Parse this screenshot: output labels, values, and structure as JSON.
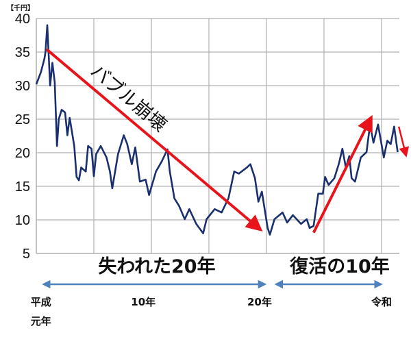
{
  "chart_data": {
    "type": "line",
    "unit_label": "【千円】",
    "ylim": [
      5,
      40
    ],
    "yticks": [
      "5",
      "10",
      "15",
      "20",
      "25",
      "30",
      "35",
      "40"
    ],
    "xlim": [
      1989,
      2020.55
    ],
    "x_grid_years": [
      1994,
      1999,
      2004,
      2009,
      2014,
      2019
    ],
    "grid": true,
    "line_color": "#1a2f6e",
    "arrow_color": "#e8141c",
    "period_arrow_color": "#4f81bd",
    "series": [
      {
        "x": [
          1989.0,
          1989.4,
          1989.7,
          1989.8,
          1989.95,
          1990.2,
          1990.4,
          1990.6,
          1990.8,
          1990.95,
          1991.2,
          1991.5,
          1991.7,
          1991.9,
          1992.3,
          1992.5,
          1992.7,
          1992.9,
          1993.3,
          1993.5,
          1993.8,
          1994.0,
          1994.2,
          1994.6,
          1995.1,
          1995.4,
          1995.6,
          1996.1,
          1996.6,
          1996.9,
          1997.3,
          1997.6,
          1998.0,
          1998.5,
          1998.8,
          1999.4,
          1999.9,
          2000.4,
          2000.6,
          2001.0,
          2001.4,
          2001.9,
          2002.3,
          2002.9,
          2003.5,
          2003.8,
          2004.5,
          2005.1,
          2005.7,
          2006.2,
          2006.6,
          2007.3,
          2007.6,
          2008.0,
          2008.3,
          2008.6,
          2009.1,
          2009.3,
          2009.7,
          2010.4,
          2010.8,
          2011.3,
          2012.0,
          2012.5,
          2012.75,
          2013.1,
          2013.5,
          2013.9,
          2014.1,
          2014.4,
          2014.9,
          2015.3,
          2015.6,
          2015.9,
          2016.2,
          2016.4,
          2016.7,
          2017.2,
          2017.7,
          2018.0,
          2018.3,
          2018.7,
          2019.2,
          2019.5,
          2019.8,
          2020.1,
          2020.4
        ],
        "y": [
          30.2,
          32,
          34,
          35,
          39,
          30,
          33.4,
          30.5,
          21,
          25,
          26.4,
          26,
          22.6,
          25.2,
          21,
          16.4,
          15.9,
          17.8,
          17.2,
          21,
          20.6,
          16.5,
          19.8,
          21,
          19.3,
          17.2,
          14.7,
          19.8,
          22.6,
          21.3,
          18.3,
          20.8,
          15.7,
          16,
          13.7,
          17.2,
          18.7,
          20.5,
          17.2,
          13.2,
          12.1,
          10.1,
          11.6,
          9.4,
          8.0,
          10.1,
          11.6,
          11.1,
          13.2,
          17.2,
          16.9,
          17.8,
          18.3,
          16.2,
          12.7,
          14.2,
          8.8,
          7.8,
          10.1,
          11.1,
          9.6,
          10.7,
          9.4,
          10.1,
          8.8,
          9.1,
          13.9,
          13.9,
          16.4,
          15.2,
          16.2,
          18.4,
          20.6,
          17.8,
          19.5,
          16.2,
          15.7,
          19.3,
          20.1,
          24.2,
          21.5,
          24.2,
          19.3,
          21.8,
          21.3,
          23.9,
          20.1
        ]
      }
    ],
    "trend_arrows": [
      {
        "label": "バブル崩壊",
        "from": [
          1989.9,
          35.4
        ],
        "to": [
          2008.3,
          8.8
        ]
      },
      {
        "label": "",
        "from": [
          2013.1,
          8.1
        ],
        "to": [
          2018.0,
          24.9
        ]
      },
      {
        "label": "",
        "from": [
          2020.5,
          23.9
        ],
        "to": [
          2021.1,
          19.8
        ]
      }
    ],
    "periods": [
      {
        "label": "失われた20年",
        "from": 1989.4,
        "to": 2009.1
      },
      {
        "label": "復活の10年",
        "from": 2009.6,
        "to": 2019.2
      }
    ],
    "era_labels": [
      {
        "label": "平成",
        "sub": "元年",
        "year": 1989.4
      },
      {
        "label": "10年",
        "sub": "",
        "year": 1998.3
      },
      {
        "label": "20年",
        "sub": "",
        "year": 2008.4
      },
      {
        "label": "令和",
        "sub": "",
        "year": 2019.0
      }
    ]
  }
}
